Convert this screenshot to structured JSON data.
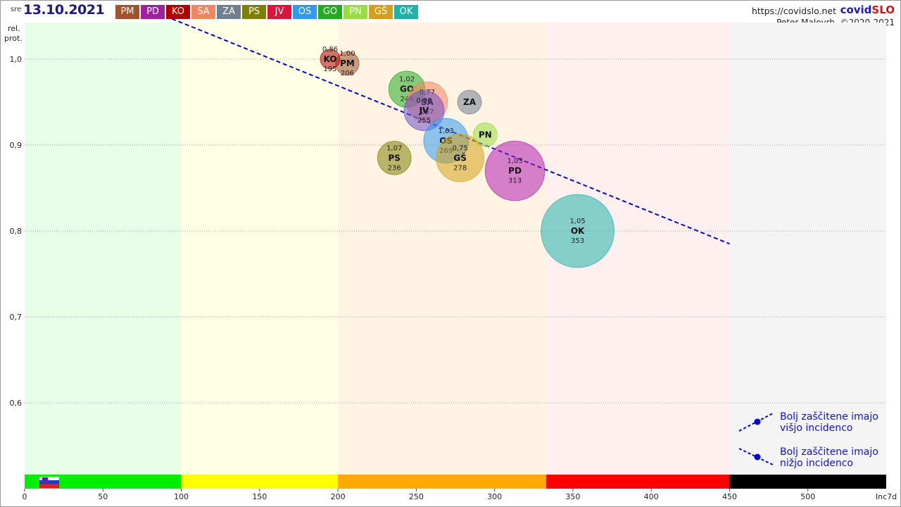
{
  "header": {
    "day": "sre",
    "date": "13.10.2021",
    "url": "https://covidslo.net",
    "brand_a": "covid",
    "brand_b": "SLO",
    "author": "Peter Malovrh, ©2020-2021"
  },
  "legend": [
    {
      "code": "PM",
      "color": "#a0522d"
    },
    {
      "code": "PD",
      "color": "#a020a0"
    },
    {
      "code": "KO",
      "color": "#b00000"
    },
    {
      "code": "SA",
      "color": "#f4845f"
    },
    {
      "code": "ZA",
      "color": "#708090"
    },
    {
      "code": "PS",
      "color": "#808000"
    },
    {
      "code": "JV",
      "color": "#dc143c"
    },
    {
      "code": "OS",
      "color": "#3399ee"
    },
    {
      "code": "GO",
      "color": "#22aa22"
    },
    {
      "code": "PN",
      "color": "#99dd44"
    },
    {
      "code": "GŠ",
      "color": "#d4a017"
    },
    {
      "code": "OK",
      "color": "#20b2aa"
    }
  ],
  "notes": {
    "higher_line1": "Bolj  zaščitene imajo",
    "higher_line2": "višjo incidenco",
    "lower_line1": "Bolj  zaščitene imajo",
    "lower_line2": "nižjo incidenco"
  },
  "chart_data": {
    "type": "scatter",
    "xlabel": "Inc7d",
    "ylabel": "rel. prot.",
    "xlim": [
      0,
      550
    ],
    "ylim": [
      0.51,
      1.05
    ],
    "x_ticks": [
      0,
      50,
      100,
      150,
      200,
      250,
      300,
      350,
      400,
      450,
      500
    ],
    "x_tick_labels": [
      "0",
      "50",
      "100",
      "150",
      "200",
      "250",
      "300",
      "350",
      "400",
      "450",
      "500"
    ],
    "y_ticks": [
      0.6,
      0.7,
      0.8,
      0.9,
      1.0
    ],
    "y_tick_labels": [
      "0,6",
      "0,7",
      "0,8",
      "0,9",
      "1,0"
    ],
    "grid": true,
    "bands": [
      {
        "from": 0,
        "to": 100,
        "bg": "#e6ffe6",
        "bar": "#00ee00"
      },
      {
        "from": 100,
        "to": 200,
        "bg": "#ffffe6",
        "bar": "#ffff00"
      },
      {
        "from": 200,
        "to": 333,
        "bg": "#fff4e4",
        "bar": "#ffaa00"
      },
      {
        "from": 333,
        "to": 450,
        "bg": "#fff0f0",
        "bar": "#ff0000"
      },
      {
        "from": 450,
        "to": 550,
        "bg": "#f4f4f4",
        "bar": "#000000"
      }
    ],
    "trend_line": {
      "x": [
        94,
        450
      ],
      "y": [
        1.047,
        0.785
      ],
      "color": "#0000dd"
    },
    "bubbles": [
      {
        "code": "PD",
        "x": 313,
        "y": 0.87,
        "size": 313,
        "ratio": "1,03",
        "color": "#b01fb0"
      },
      {
        "code": "PM",
        "x": 206,
        "y": 0.995,
        "size": 206,
        "ratio": "1,00",
        "color": "#a0522d"
      },
      {
        "code": "KO",
        "x": 195,
        "y": 1.0,
        "size": 195,
        "ratio": "0,86",
        "color": "#b00000"
      },
      {
        "code": "GO",
        "x": 244,
        "y": 0.965,
        "size": 244,
        "ratio": "1,02",
        "color": "#22aa22"
      },
      {
        "code": "SA",
        "x": 257,
        "y": 0.95,
        "size": 257,
        "ratio": "0,77",
        "color": "#f4845f"
      },
      {
        "code": "ZA",
        "x": 284,
        "y": 0.95,
        "size": null,
        "ratio": "",
        "color": "#708090"
      },
      {
        "code": "JV",
        "x": 255,
        "y": 0.94,
        "size": 255,
        "ratio": "0,90",
        "color": "#7050c8"
      },
      {
        "code": "OS",
        "x": 269,
        "y": 0.905,
        "size": 269,
        "ratio": "1,03",
        "color": "#3399ee"
      },
      {
        "code": "PN",
        "x": 294,
        "y": 0.912,
        "size": null,
        "ratio": "",
        "color": "#99dd44"
      },
      {
        "code": "PS",
        "x": 236,
        "y": 0.885,
        "size": 236,
        "ratio": "1,07",
        "color": "#808000"
      },
      {
        "code": "GŠ",
        "x": 278,
        "y": 0.885,
        "size": 278,
        "ratio": "0,75",
        "color": "#d4a017"
      },
      {
        "code": "OK",
        "x": 353,
        "y": 0.8,
        "size": 353,
        "ratio": "1,05",
        "color": "#20b2aa"
      }
    ]
  }
}
